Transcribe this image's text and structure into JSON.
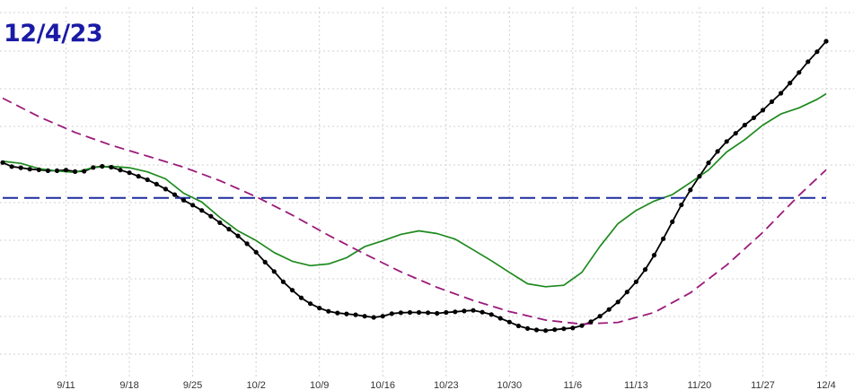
{
  "date_stamp": "12/4/23",
  "colors": {
    "black_series": "#000000",
    "green_series": "#1e8a1e",
    "magenta_series": "#9b1b7a",
    "reference_line": "#1f2d9e",
    "grid": "#d0d0d0"
  },
  "chart_data": {
    "type": "line",
    "title": "",
    "xlabel": "",
    "ylabel": "",
    "x_start": "9/4",
    "x_end": "12/4",
    "x_ticks": [
      "9/11",
      "9/18",
      "9/25",
      "10/2",
      "10/9",
      "10/16",
      "10/23",
      "10/30",
      "11/6",
      "11/13",
      "11/20",
      "11/27",
      "12/4"
    ],
    "ylim": [
      0,
      100
    ],
    "y_axis_labels_shown": false,
    "grid": true,
    "series": [
      {
        "style": "solid-with-markers",
        "color": "#000000",
        "x": [
          "9/4",
          "9/5",
          "9/6",
          "9/7",
          "9/8",
          "9/9",
          "9/10",
          "9/11",
          "9/12",
          "9/13",
          "9/14",
          "9/15",
          "9/16",
          "9/17",
          "9/18",
          "9/19",
          "9/20",
          "9/21",
          "9/22",
          "9/23",
          "9/24",
          "9/25",
          "9/26",
          "9/27",
          "9/28",
          "9/29",
          "9/30",
          "10/1",
          "10/2",
          "10/3",
          "10/4",
          "10/5",
          "10/6",
          "10/7",
          "10/8",
          "10/9",
          "10/10",
          "10/11",
          "10/12",
          "10/13",
          "10/14",
          "10/15",
          "10/16",
          "10/17",
          "10/18",
          "10/19",
          "10/20",
          "10/21",
          "10/22",
          "10/23",
          "10/24",
          "10/25",
          "10/26",
          "10/27",
          "10/28",
          "10/29",
          "10/30",
          "10/31",
          "11/1",
          "11/2",
          "11/3",
          "11/4",
          "11/5",
          "11/6",
          "11/7",
          "11/8",
          "11/9",
          "11/10",
          "11/11",
          "11/12",
          "11/13",
          "11/14",
          "11/15",
          "11/16",
          "11/17",
          "11/18",
          "11/19",
          "11/20",
          "11/21",
          "11/22",
          "11/23",
          "11/24",
          "11/25",
          "11/26",
          "11/27",
          "11/28",
          "11/29",
          "11/30",
          "12/1",
          "12/2",
          "12/3",
          "12/4"
        ],
        "values": [
          62.5,
          61.1,
          60.7,
          60.2,
          60.0,
          59.7,
          59.7,
          59.9,
          59.4,
          59.5,
          60.8,
          61.2,
          60.9,
          59.9,
          59.0,
          57.8,
          56.6,
          55.1,
          53.4,
          51.5,
          49.6,
          47.9,
          46.1,
          44.1,
          41.9,
          39.7,
          37.4,
          34.7,
          31.8,
          28.4,
          25.2,
          21.7,
          18.8,
          16.2,
          14.2,
          12.7,
          11.6,
          11.0,
          10.7,
          10.4,
          9.9,
          9.5,
          9.9,
          10.8,
          11.1,
          11.2,
          11.2,
          11.1,
          10.9,
          11.2,
          11.4,
          11.7,
          11.9,
          11.3,
          10.5,
          9.2,
          7.9,
          6.6,
          5.7,
          5.2,
          5.0,
          5.3,
          5.6,
          5.9,
          6.7,
          8.0,
          9.9,
          12.2,
          14.8,
          18.2,
          21.7,
          25.9,
          30.8,
          36.4,
          42.2,
          48.0,
          53.1,
          57.8,
          62.4,
          66.3,
          69.7,
          72.5,
          75.3,
          77.8,
          80.4,
          83.3,
          86.2,
          89.7,
          93.3,
          97.0,
          100.4,
          104.0
        ]
      },
      {
        "style": "solid",
        "color": "#1e8a1e",
        "x": [
          "9/4",
          "9/6",
          "9/8",
          "9/10",
          "9/12",
          "9/14",
          "9/16",
          "9/18",
          "9/20",
          "9/22",
          "9/24",
          "9/26",
          "9/28",
          "9/30",
          "10/2",
          "10/4",
          "10/6",
          "10/8",
          "10/10",
          "10/12",
          "10/14",
          "10/16",
          "10/18",
          "10/20",
          "10/22",
          "10/24",
          "10/26",
          "10/28",
          "10/30",
          "11/1",
          "11/3",
          "11/5",
          "11/7",
          "11/9",
          "11/11",
          "11/13",
          "11/15",
          "11/17",
          "11/19",
          "11/21",
          "11/23",
          "11/25",
          "11/27",
          "11/29",
          "12/1",
          "12/3",
          "12/4"
        ],
        "values": [
          62.9,
          62.2,
          60.4,
          59.6,
          59.1,
          60.8,
          61.2,
          60.7,
          59.3,
          56.9,
          52.0,
          49.0,
          43.7,
          39.1,
          35.8,
          31.7,
          28.7,
          27.2,
          27.8,
          29.9,
          33.7,
          35.7,
          37.9,
          39.1,
          38.2,
          36.3,
          32.6,
          28.9,
          24.9,
          21.0,
          20.0,
          20.5,
          24.9,
          33.8,
          41.6,
          46.1,
          49.3,
          51.5,
          55.6,
          59.9,
          66.1,
          70.3,
          75.3,
          79.1,
          81.2,
          84.1,
          86.0
        ]
      },
      {
        "style": "dashed",
        "color": "#9b1b7a",
        "x": [
          "9/4",
          "9/8",
          "9/12",
          "9/16",
          "9/20",
          "9/24",
          "9/28",
          "10/2",
          "10/6",
          "10/10",
          "10/14",
          "10/18",
          "10/22",
          "10/26",
          "10/30",
          "11/3",
          "11/7",
          "11/11",
          "11/15",
          "11/19",
          "11/23",
          "11/27",
          "12/1",
          "12/4"
        ],
        "values": [
          84.5,
          78.2,
          72.8,
          68.4,
          64.7,
          60.9,
          56.3,
          50.8,
          44.5,
          37.6,
          31.2,
          25.1,
          19.8,
          15.3,
          11.5,
          8.6,
          7.2,
          7.8,
          11.2,
          17.9,
          27.4,
          38.6,
          51.3,
          60.0
        ]
      },
      {
        "style": "long-dashed",
        "color": "#1f2d9e",
        "x": [
          "9/4",
          "12/4"
        ],
        "values": [
          50.4,
          50.4
        ]
      }
    ]
  }
}
